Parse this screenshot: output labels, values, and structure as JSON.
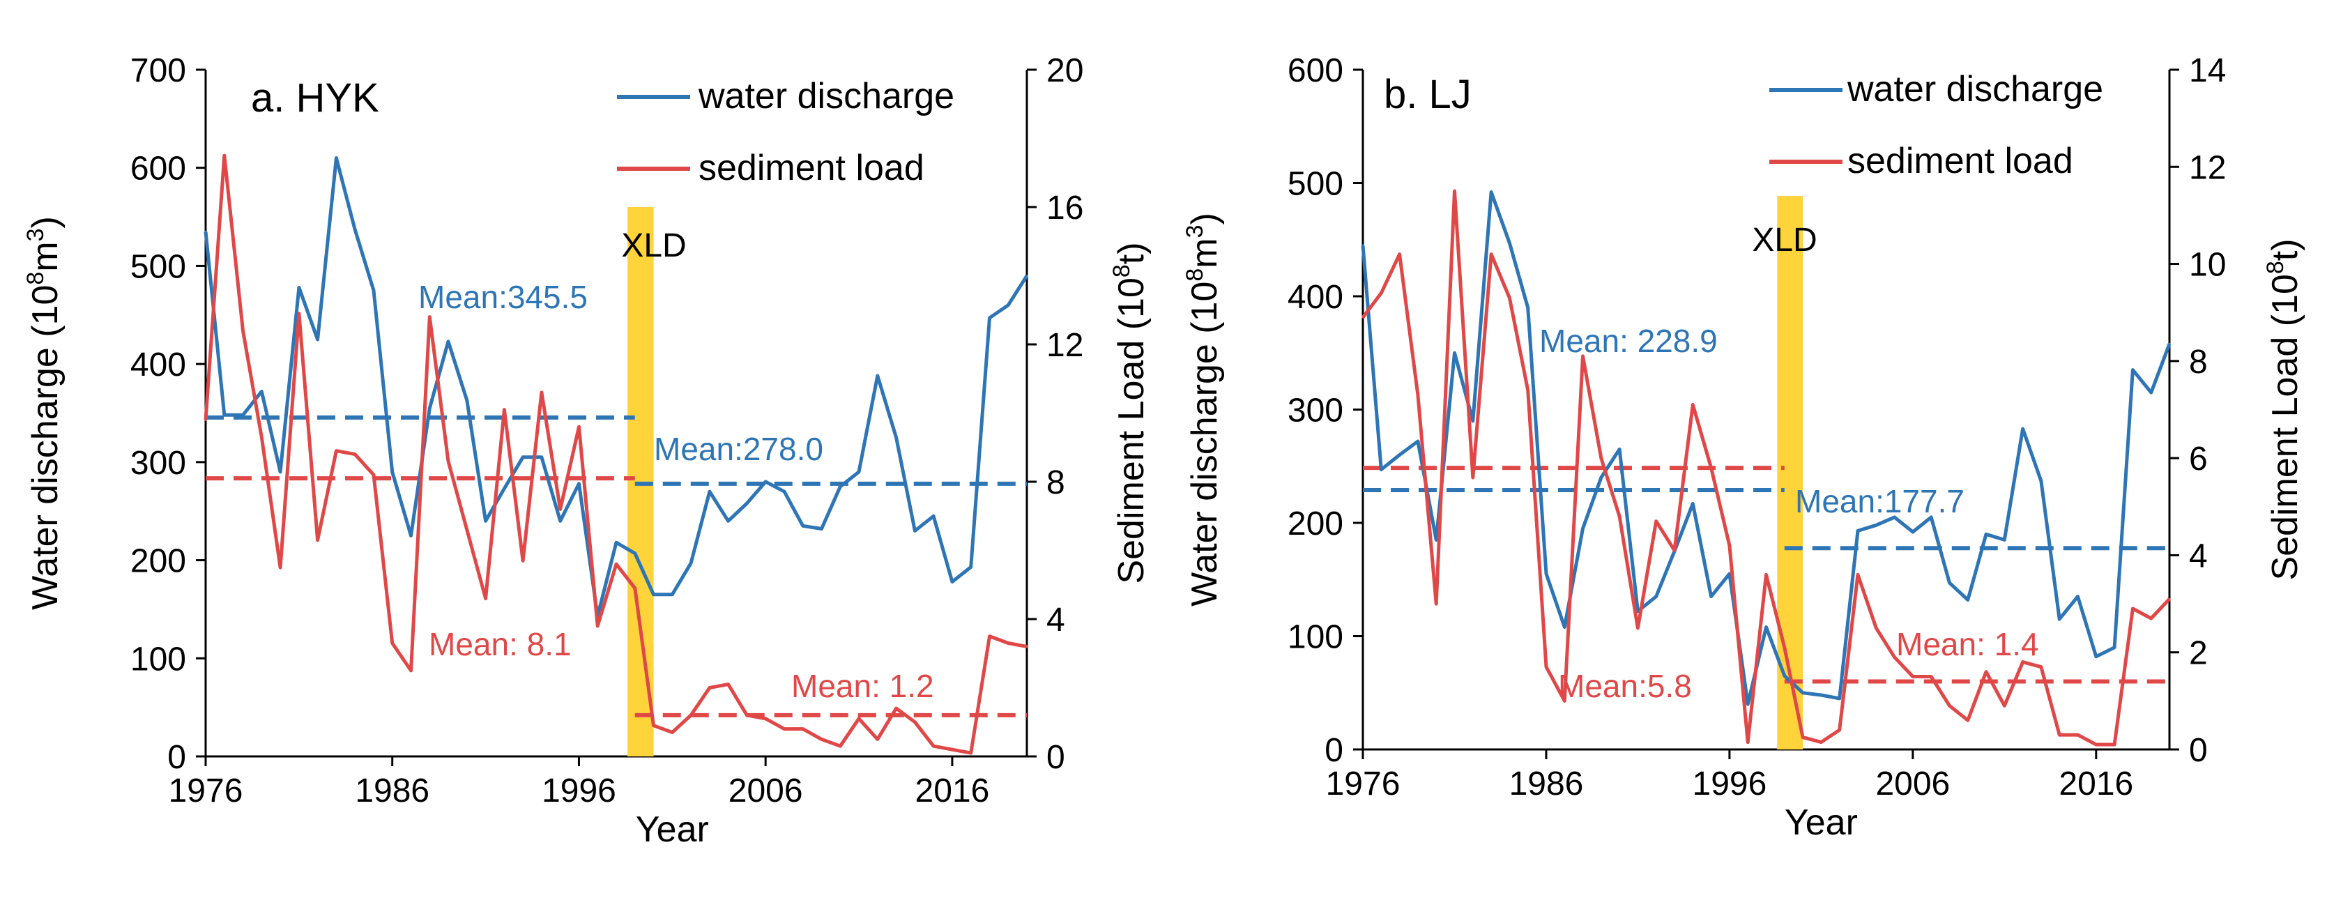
{
  "figure": {
    "x_axis_title": "Year",
    "x_ticks": [
      1976,
      1986,
      1996,
      2006,
      2016
    ],
    "legend": {
      "water": "water discharge",
      "sediment": "sediment load"
    },
    "colors": {
      "water": "#2E75B6",
      "sediment": "#E04848",
      "xld_bar": "#FFD43B",
      "axis": "#000000"
    }
  },
  "chart_data": [
    {
      "type": "line",
      "title": "a. HYK",
      "xlabel": "Year",
      "xlim": [
        1976,
        2020
      ],
      "y_left": {
        "label_prefix": "Water discharge (10",
        "label_sup": "8",
        "label_suffix": "m",
        "label_sup2": "3",
        "label_end": ")",
        "range": [
          0,
          700
        ],
        "ticks": [
          0,
          100,
          200,
          300,
          400,
          500,
          600,
          700
        ]
      },
      "y_right": {
        "label_prefix": "Sediment Load (10",
        "label_sup": "8",
        "label_suffix": "t)",
        "range": [
          0,
          20
        ],
        "ticks": [
          0,
          4,
          8,
          12,
          16,
          20
        ]
      },
      "xld": {
        "label": "XLD",
        "x_start": 1998.6,
        "x_end": 2000,
        "y_top": 16
      },
      "series": [
        {
          "name": "water discharge",
          "axis": "left",
          "x": [
            1976,
            1977,
            1978,
            1979,
            1980,
            1981,
            1982,
            1983,
            1984,
            1985,
            1986,
            1987,
            1988,
            1989,
            1990,
            1991,
            1992,
            1993,
            1994,
            1995,
            1996,
            1997,
            1998,
            1999,
            2000,
            2001,
            2002,
            2003,
            2004,
            2005,
            2006,
            2007,
            2008,
            2009,
            2010,
            2011,
            2012,
            2013,
            2014,
            2015,
            2016,
            2017,
            2018,
            2019,
            2020
          ],
          "values": [
            535,
            348,
            348,
            372,
            290,
            478,
            425,
            610,
            537,
            475,
            290,
            225,
            355,
            423,
            363,
            240,
            273,
            305,
            305,
            240,
            278,
            143,
            218,
            207,
            165,
            165,
            197,
            270,
            240,
            258,
            280,
            270,
            235,
            232,
            275,
            290,
            388,
            325,
            230,
            245,
            178,
            193,
            447,
            460,
            490
          ]
        },
        {
          "name": "sediment load",
          "axis": "right",
          "x": [
            1976,
            1977,
            1978,
            1979,
            1980,
            1981,
            1982,
            1983,
            1984,
            1985,
            1986,
            1987,
            1988,
            1989,
            1990,
            1991,
            1992,
            1993,
            1994,
            1995,
            1996,
            1997,
            1998,
            1999,
            2000,
            2001,
            2002,
            2003,
            2004,
            2005,
            2006,
            2007,
            2008,
            2009,
            2010,
            2011,
            2012,
            2013,
            2014,
            2015,
            2016,
            2017,
            2018,
            2019,
            2020
          ],
          "values": [
            9.8,
            17.5,
            12.4,
            9.3,
            5.5,
            12.9,
            6.3,
            8.9,
            8.8,
            8.2,
            3.3,
            2.5,
            12.8,
            8.6,
            6.6,
            4.6,
            10.1,
            5.7,
            10.6,
            7.2,
            9.6,
            3.8,
            5.6,
            4.9,
            0.9,
            0.7,
            1.2,
            2.0,
            2.1,
            1.2,
            1.1,
            0.8,
            0.8,
            0.5,
            0.3,
            1.1,
            0.5,
            1.4,
            1.0,
            0.3,
            0.2,
            0.1,
            3.5,
            3.3,
            3.2
          ]
        }
      ],
      "means": [
        {
          "label": "Mean:345.5",
          "axis": "left",
          "value": 345.5,
          "x_from": 1976,
          "x_to": 1999,
          "color": "water"
        },
        {
          "label": "Mean:278.0",
          "axis": "left",
          "value": 278.0,
          "x_from": 1999,
          "x_to": 2020,
          "color": "water"
        },
        {
          "label": "Mean: 8.1",
          "axis": "right",
          "value": 8.1,
          "x_from": 1976,
          "x_to": 1999,
          "color": "sediment"
        },
        {
          "label": "Mean: 1.2",
          "axis": "right",
          "value": 1.2,
          "x_from": 1999,
          "x_to": 2020,
          "color": "sediment"
        }
      ]
    },
    {
      "type": "line",
      "title": "b. LJ",
      "xlabel": "Year",
      "xlim": [
        1976,
        2020
      ],
      "y_left": {
        "label_prefix": "Water discharge (10",
        "label_sup": "8",
        "label_suffix": "m",
        "label_sup2": "3",
        "label_end": ")",
        "range": [
          0,
          600
        ],
        "ticks": [
          0,
          100,
          200,
          300,
          400,
          500,
          600
        ]
      },
      "y_right": {
        "label_prefix": "Sediment Load (10",
        "label_sup": "8",
        "label_suffix": "t)",
        "range": [
          0,
          14
        ],
        "ticks": [
          0,
          2,
          4,
          6,
          8,
          10,
          12,
          14
        ]
      },
      "xld": {
        "label": "XLD",
        "x_start": 1998.6,
        "x_end": 2000,
        "y_top": 11.4
      },
      "series": [
        {
          "name": "water discharge",
          "axis": "left",
          "x": [
            1976,
            1977,
            1978,
            1979,
            1980,
            1981,
            1982,
            1983,
            1984,
            1985,
            1986,
            1987,
            1988,
            1989,
            1990,
            1991,
            1992,
            1993,
            1994,
            1995,
            1996,
            1997,
            1998,
            1999,
            2000,
            2001,
            2002,
            2003,
            2004,
            2005,
            2006,
            2007,
            2008,
            2009,
            2010,
            2011,
            2012,
            2013,
            2014,
            2015,
            2016,
            2017,
            2018,
            2019,
            2020
          ],
          "values": [
            445,
            247,
            260,
            272,
            185,
            350,
            290,
            492,
            447,
            390,
            155,
            108,
            195,
            240,
            265,
            122,
            135,
            175,
            217,
            135,
            155,
            40,
            108,
            65,
            50,
            48,
            45,
            193,
            198,
            205,
            192,
            205,
            147,
            132,
            190,
            185,
            283,
            237,
            115,
            135,
            82,
            90,
            335,
            315,
            358
          ]
        },
        {
          "name": "sediment load",
          "axis": "right",
          "x": [
            1976,
            1977,
            1978,
            1979,
            1980,
            1981,
            1982,
            1983,
            1984,
            1985,
            1986,
            1987,
            1988,
            1989,
            1990,
            1991,
            1992,
            1993,
            1994,
            1995,
            1996,
            1997,
            1998,
            1999,
            2000,
            2001,
            2002,
            2003,
            2004,
            2005,
            2006,
            2007,
            2008,
            2009,
            2010,
            2011,
            2012,
            2013,
            2014,
            2015,
            2016,
            2017,
            2018,
            2019,
            2020
          ],
          "values": [
            8.9,
            9.4,
            10.2,
            7.3,
            3.0,
            11.5,
            5.6,
            10.2,
            9.3,
            7.4,
            1.7,
            1.0,
            8.1,
            6.0,
            4.8,
            2.5,
            4.7,
            4.1,
            7.1,
            5.8,
            4.2,
            0.15,
            3.6,
            2.1,
            0.25,
            0.15,
            0.4,
            3.6,
            2.5,
            1.9,
            1.5,
            1.5,
            0.9,
            0.6,
            1.6,
            0.9,
            1.8,
            1.7,
            0.3,
            0.3,
            0.1,
            0.1,
            2.9,
            2.7,
            3.1
          ]
        }
      ],
      "means": [
        {
          "label": "Mean: 228.9",
          "axis": "left",
          "value": 228.9,
          "x_from": 1976,
          "x_to": 1999,
          "color": "water"
        },
        {
          "label": "Mean:177.7",
          "axis": "left",
          "value": 177.7,
          "x_from": 1999,
          "x_to": 2020,
          "color": "water"
        },
        {
          "label": "Mean:5.8",
          "axis": "right",
          "value": 5.8,
          "x_from": 1976,
          "x_to": 1999,
          "color": "sediment"
        },
        {
          "label": "Mean: 1.4",
          "axis": "right",
          "value": 1.4,
          "x_from": 1999,
          "x_to": 2020,
          "color": "sediment"
        }
      ]
    }
  ]
}
